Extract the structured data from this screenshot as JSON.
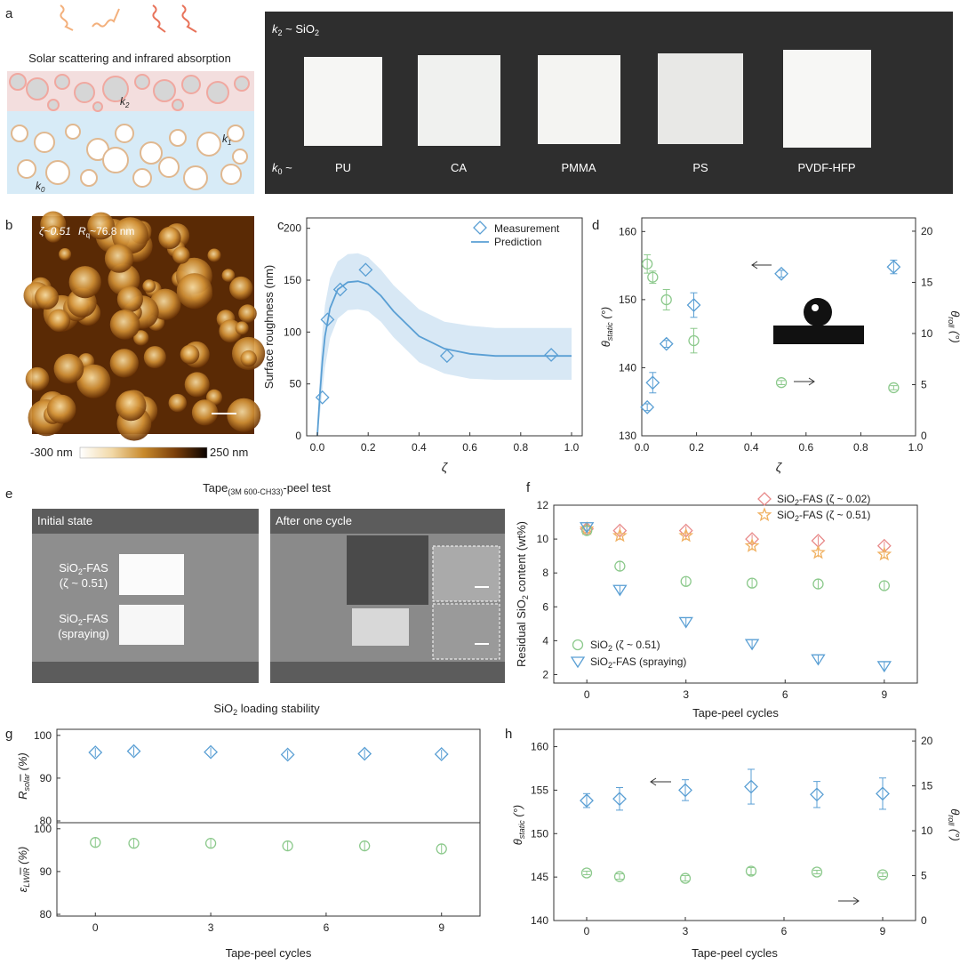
{
  "figure_title": "",
  "panels": {
    "a": {
      "letter": "a",
      "schematic_title": "Solar scattering and infrared absorption",
      "k2": "k",
      "k2_sub": "2",
      "k1": "k",
      "k1_sub": "1",
      "k0": "k",
      "k0_sub": "0",
      "photo_top_label": "k",
      "photo_top_sub": "2",
      "photo_top_rest": " ~ SiO",
      "photo_top_rest_sub": "2",
      "photo_bottom_label": "k",
      "photo_bottom_sub": "0",
      "photo_bottom_rest": " ~",
      "sample_labels": [
        "PU",
        "CA",
        "PMMA",
        "PS",
        "PVDF-HFP"
      ]
    },
    "b": {
      "letter": "b",
      "afm_text_zeta": "ζ~0.51",
      "afm_text_r": "R",
      "afm_text_r_sub": "q",
      "afm_text_r_val": "~76.8 nm",
      "colorbar_min": "-300 nm",
      "colorbar_max": "250 nm"
    },
    "c": {
      "letter": "c"
    },
    "d": {
      "letter": "d"
    },
    "e": {
      "letter": "e",
      "title_main": "Tape",
      "title_sub": "(3M 600-CH33)",
      "title_rest": "-peel test",
      "left_label": "Initial state",
      "right_label": "After one cycle",
      "sample1_line1": "SiO",
      "sample1_line1_sub": "2",
      "sample1_line1_rest": "-FAS",
      "sample1_line2": "(ζ ~ 0.51)",
      "sample2_line1": "SiO",
      "sample2_line1_sub": "2",
      "sample2_line1_rest": "-FAS",
      "sample2_line2": "(spraying)",
      "bottom_caption": "SiO",
      "bottom_caption_sub": "2",
      "bottom_caption_rest": " loading stability"
    },
    "f": {
      "letter": "f"
    },
    "g": {
      "letter": "g"
    },
    "h": {
      "letter": "h"
    }
  },
  "chart_data": [
    {
      "panel": "c",
      "type": "scatter",
      "xlabel": "ζ",
      "ylabel": "Surface roughness (nm)",
      "xlim": [
        0,
        1.0
      ],
      "ylim": [
        0,
        210
      ],
      "xticks": [
        "0.0",
        "0.2",
        "0.4",
        "0.6",
        "0.8",
        "1.0"
      ],
      "yticks": [
        "0",
        "50",
        "100",
        "150",
        "200"
      ],
      "legend": [
        "Measurement",
        "Prediction"
      ],
      "series": [
        {
          "name": "Measurement",
          "marker": "diamond",
          "color": "#5a9fd4",
          "x": [
            0.02,
            0.04,
            0.09,
            0.19,
            0.51,
            0.92
          ],
          "y": [
            37,
            112,
            141,
            160,
            77,
            78
          ]
        },
        {
          "name": "Prediction",
          "marker": "line",
          "color": "#5a9fd4",
          "x": [
            0.0,
            0.01,
            0.02,
            0.03,
            0.05,
            0.08,
            0.12,
            0.16,
            0.2,
            0.25,
            0.3,
            0.4,
            0.5,
            0.6,
            0.7,
            0.8,
            0.9,
            1.0
          ],
          "y": [
            0,
            40,
            72,
            96,
            123,
            141,
            148,
            149,
            146,
            135,
            120,
            96,
            84,
            79,
            77,
            77,
            77,
            77
          ],
          "band_upper": [
            0,
            60,
            100,
            126,
            152,
            168,
            175,
            176,
            172,
            160,
            145,
            122,
            110,
            106,
            104,
            104,
            104,
            104
          ],
          "band_lower": [
            0,
            20,
            44,
            66,
            94,
            113,
            121,
            122,
            120,
            110,
            95,
            71,
            60,
            55,
            54,
            54,
            54,
            54
          ]
        }
      ]
    },
    {
      "panel": "d",
      "type": "scatter",
      "xlabel": "ζ",
      "ylabel_left": "θ",
      "ylabel_left_sub": "static",
      "ylabel_left_unit": " (°)",
      "ylabel_right": "θ",
      "ylabel_right_sub": "roll",
      "ylabel_right_unit": " (°)",
      "xlim": [
        0,
        1.0
      ],
      "ylim_left": [
        130,
        162
      ],
      "ylim_right": [
        0,
        21.3
      ],
      "xticks": [
        "0.0",
        "0.2",
        "0.4",
        "0.6",
        "0.8",
        "1.0"
      ],
      "yticks_left": [
        "130",
        "140",
        "150",
        "160"
      ],
      "yticks_right": [
        "0",
        "5",
        "10",
        "15",
        "20"
      ],
      "series": [
        {
          "name": "static",
          "axis": "left",
          "marker": "diamond",
          "color": "#5a9fd4",
          "x": [
            0.02,
            0.04,
            0.09,
            0.19,
            0.51,
            0.92
          ],
          "y": [
            134.2,
            137.8,
            143.5,
            149.2,
            153.8,
            154.8
          ],
          "err": [
            0.5,
            1.5,
            0.5,
            1.8,
            0.5,
            1.0
          ]
        },
        {
          "name": "roll",
          "axis": "right",
          "marker": "circle",
          "color": "#8cc98c",
          "x": [
            0.02,
            0.04,
            0.09,
            0.19,
            0.51,
            0.92
          ],
          "y": [
            16.8,
            15.5,
            13.3,
            9.3,
            5.2,
            4.7
          ],
          "err": [
            0.9,
            0.6,
            1.0,
            1.2,
            0.2,
            0.2
          ]
        }
      ]
    },
    {
      "panel": "f",
      "type": "scatter",
      "xlabel": "Tape-peel cycles",
      "ylabel": "Residual SiO",
      "ylabel_sub": "2",
      "ylabel_rest": " content (wt%)",
      "xlim": [
        -1,
        10
      ],
      "ylim": [
        1.5,
        12
      ],
      "xticks": [
        "0",
        "3",
        "6",
        "9"
      ],
      "yticks": [
        "2",
        "4",
        "6",
        "8",
        "10",
        "12"
      ],
      "series": [
        {
          "name": "SiO2-FAS (ζ ~ 0.02)",
          "legend_main": "SiO",
          "legend_sub": "2",
          "legend_rest": "-FAS (ζ ~ 0.02)",
          "marker": "diamond",
          "color": "#e88a8a",
          "x": [
            0,
            1,
            3,
            5,
            7,
            9
          ],
          "y": [
            10.6,
            10.5,
            10.5,
            10.0,
            9.9,
            9.6
          ]
        },
        {
          "name": "SiO2-FAS (ζ ~ 0.51)",
          "legend_main": "SiO",
          "legend_sub": "2",
          "legend_rest": "-FAS (ζ ~ 0.51)",
          "marker": "star",
          "color": "#f0b060",
          "x": [
            0,
            1,
            3,
            5,
            7,
            9
          ],
          "y": [
            10.6,
            10.2,
            10.2,
            9.6,
            9.2,
            9.1
          ]
        },
        {
          "name": "SiO2 (ζ ~ 0.51)",
          "legend_main": "SiO",
          "legend_sub": "2",
          "legend_rest": " (ζ ~ 0.51)",
          "marker": "circle",
          "color": "#8cc98c",
          "x": [
            0,
            1,
            3,
            5,
            7,
            9
          ],
          "y": [
            10.5,
            8.4,
            7.5,
            7.4,
            7.35,
            7.25
          ]
        },
        {
          "name": "SiO2-FAS (spraying)",
          "legend_main": "SiO",
          "legend_sub": "2",
          "legend_rest": "-FAS (spraying)",
          "marker": "triangle",
          "color": "#5a9fd4",
          "x": [
            0,
            1,
            3,
            5,
            7,
            9
          ],
          "y": [
            10.7,
            7.0,
            5.1,
            3.8,
            2.9,
            2.5
          ]
        }
      ]
    },
    {
      "panel": "g",
      "type": "scatter",
      "xlabel": "Tape-peel cycles",
      "xlim": [
        -1,
        10
      ],
      "xticks": [
        "0",
        "3",
        "6",
        "9"
      ],
      "subplots": [
        {
          "ylabel": "R",
          "ylabel_sub": "solar",
          "ylabel_unit": " (%)",
          "ylim": [
            80,
            101
          ],
          "yticks": [
            "80",
            "90",
            "100"
          ],
          "marker": "diamond",
          "color": "#5a9fd4",
          "x": [
            0,
            1,
            3,
            5,
            7,
            9
          ],
          "y": [
            96.0,
            96.3,
            96.1,
            95.5,
            95.7,
            95.6
          ]
        },
        {
          "ylabel": "ε",
          "ylabel_sub": "LWIR",
          "ylabel_unit": " (%)",
          "ylim": [
            80,
            101
          ],
          "yticks": [
            "80",
            "90",
            "100"
          ],
          "marker": "circle",
          "color": "#8cc98c",
          "x": [
            0,
            1,
            3,
            5,
            7,
            9
          ],
          "y": [
            96.8,
            96.6,
            96.6,
            96.0,
            96.0,
            95.3
          ]
        }
      ]
    },
    {
      "panel": "h",
      "type": "scatter",
      "xlabel": "Tape-peel cycles",
      "ylabel_left": "θ",
      "ylabel_left_sub": "static",
      "ylabel_left_unit": " (°)",
      "ylabel_right": "θ",
      "ylabel_right_sub": "roll",
      "ylabel_right_unit": " (°)",
      "xlim": [
        -1,
        10
      ],
      "ylim_left": [
        140,
        162
      ],
      "ylim_right": [
        0,
        21.3
      ],
      "xticks": [
        "0",
        "3",
        "6",
        "9"
      ],
      "yticks_left": [
        "140",
        "145",
        "150",
        "155",
        "160"
      ],
      "yticks_right": [
        "0",
        "5",
        "10",
        "15",
        "20"
      ],
      "series": [
        {
          "name": "static",
          "axis": "left",
          "marker": "diamond",
          "color": "#5a9fd4",
          "x": [
            0,
            1,
            3,
            5,
            7,
            9
          ],
          "y": [
            153.8,
            154.0,
            155.0,
            155.4,
            154.5,
            154.6
          ],
          "err": [
            0.8,
            1.3,
            1.2,
            2.0,
            1.5,
            1.8
          ]
        },
        {
          "name": "roll",
          "axis": "right",
          "marker": "circle",
          "color": "#8cc98c",
          "x": [
            0,
            1,
            3,
            5,
            7,
            9
          ],
          "y": [
            5.3,
            4.9,
            4.7,
            5.5,
            5.4,
            5.1
          ],
          "err": [
            0.2,
            0.3,
            0.3,
            0.4,
            0.2,
            0.2
          ]
        }
      ]
    }
  ]
}
